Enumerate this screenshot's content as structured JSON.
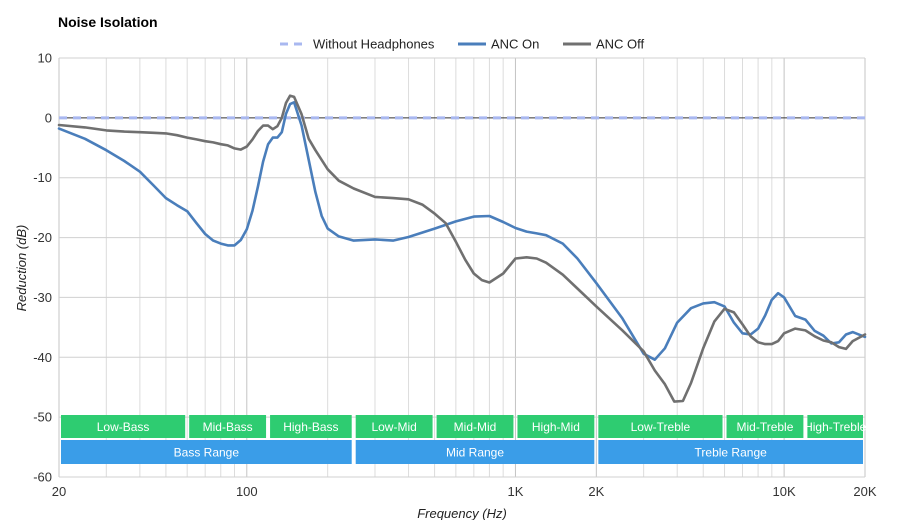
{
  "chart_data": {
    "type": "line",
    "title": "Noise Isolation",
    "xlabel": "Frequency (Hz)",
    "ylabel": "Reduction (dB)",
    "x_scale": "log",
    "xlim": [
      20,
      20000
    ],
    "ylim": [
      -60,
      10
    ],
    "x_ticks": [
      {
        "value": 20,
        "label": "20"
      },
      {
        "value": 100,
        "label": "100"
      },
      {
        "value": 1000,
        "label": "1K"
      },
      {
        "value": 2000,
        "label": "2K"
      },
      {
        "value": 10000,
        "label": "10K"
      },
      {
        "value": 20000,
        "label": "20K"
      }
    ],
    "y_ticks": [
      10,
      0,
      -10,
      -20,
      -30,
      -40,
      -50,
      -60
    ],
    "grid": true,
    "legend_position": "top",
    "series": [
      {
        "name": "Without Headphones",
        "color": "#a9b8f0",
        "dashed": true,
        "points": [
          [
            20,
            0
          ],
          [
            20000,
            0
          ]
        ]
      },
      {
        "name": "ANC On",
        "color": "#4a7ebb",
        "dashed": false,
        "points": [
          [
            20,
            -1.8
          ],
          [
            25,
            -3.5
          ],
          [
            30,
            -5.4
          ],
          [
            35,
            -7.2
          ],
          [
            40,
            -9
          ],
          [
            45,
            -11.3
          ],
          [
            50,
            -13.4
          ],
          [
            55,
            -14.6
          ],
          [
            60,
            -15.6
          ],
          [
            65,
            -17.6
          ],
          [
            70,
            -19.4
          ],
          [
            75,
            -20.5
          ],
          [
            80,
            -21
          ],
          [
            85,
            -21.3
          ],
          [
            90,
            -21.3
          ],
          [
            95,
            -20.4
          ],
          [
            100,
            -18.6
          ],
          [
            105,
            -15.5
          ],
          [
            110,
            -11.5
          ],
          [
            115,
            -7.3
          ],
          [
            120,
            -4.4
          ],
          [
            125,
            -3.3
          ],
          [
            130,
            -3.3
          ],
          [
            135,
            -2.4
          ],
          [
            140,
            0.7
          ],
          [
            145,
            2.3
          ],
          [
            150,
            2.6
          ],
          [
            160,
            -1.3
          ],
          [
            170,
            -7
          ],
          [
            180,
            -12.4
          ],
          [
            190,
            -16.4
          ],
          [
            200,
            -18.5
          ],
          [
            220,
            -19.8
          ],
          [
            250,
            -20.5
          ],
          [
            300,
            -20.3
          ],
          [
            350,
            -20.5
          ],
          [
            400,
            -19.9
          ],
          [
            500,
            -18.5
          ],
          [
            600,
            -17.3
          ],
          [
            700,
            -16.5
          ],
          [
            800,
            -16.4
          ],
          [
            900,
            -17.4
          ],
          [
            1000,
            -18.4
          ],
          [
            1100,
            -19
          ],
          [
            1200,
            -19.3
          ],
          [
            1300,
            -19.6
          ],
          [
            1500,
            -21
          ],
          [
            1700,
            -23.5
          ],
          [
            2000,
            -27.6
          ],
          [
            2500,
            -33.5
          ],
          [
            3000,
            -39.4
          ],
          [
            3300,
            -40.4
          ],
          [
            3600,
            -38.5
          ],
          [
            4000,
            -34.2
          ],
          [
            4500,
            -31.8
          ],
          [
            5000,
            -31
          ],
          [
            5500,
            -30.8
          ],
          [
            6000,
            -31.5
          ],
          [
            6500,
            -34.2
          ],
          [
            7000,
            -36
          ],
          [
            7500,
            -36.2
          ],
          [
            8000,
            -35.2
          ],
          [
            8500,
            -33
          ],
          [
            9000,
            -30.4
          ],
          [
            9500,
            -29.3
          ],
          [
            10000,
            -30
          ],
          [
            11000,
            -33.1
          ],
          [
            12000,
            -33.7
          ],
          [
            13000,
            -35.6
          ],
          [
            14000,
            -36.4
          ],
          [
            15000,
            -37.7
          ],
          [
            16000,
            -37.5
          ],
          [
            17000,
            -36.2
          ],
          [
            18000,
            -35.8
          ],
          [
            20000,
            -36.6
          ]
        ]
      },
      {
        "name": "ANC Off",
        "color": "#707070",
        "dashed": false,
        "points": [
          [
            20,
            -1.2
          ],
          [
            25,
            -1.6
          ],
          [
            30,
            -2.1
          ],
          [
            35,
            -2.3
          ],
          [
            40,
            -2.4
          ],
          [
            45,
            -2.5
          ],
          [
            50,
            -2.6
          ],
          [
            55,
            -2.9
          ],
          [
            60,
            -3.3
          ],
          [
            65,
            -3.6
          ],
          [
            70,
            -3.9
          ],
          [
            75,
            -4.1
          ],
          [
            80,
            -4.4
          ],
          [
            85,
            -4.6
          ],
          [
            90,
            -5.1
          ],
          [
            95,
            -5.3
          ],
          [
            100,
            -4.8
          ],
          [
            105,
            -3.6
          ],
          [
            110,
            -2.2
          ],
          [
            115,
            -1.3
          ],
          [
            120,
            -1.3
          ],
          [
            125,
            -1.9
          ],
          [
            130,
            -1.4
          ],
          [
            135,
            0
          ],
          [
            140,
            2.5
          ],
          [
            145,
            3.7
          ],
          [
            150,
            3.5
          ],
          [
            160,
            0.6
          ],
          [
            170,
            -3.5
          ],
          [
            180,
            -5.4
          ],
          [
            200,
            -8.6
          ],
          [
            220,
            -10.5
          ],
          [
            250,
            -11.8
          ],
          [
            300,
            -13.2
          ],
          [
            350,
            -13.4
          ],
          [
            400,
            -13.6
          ],
          [
            450,
            -14.5
          ],
          [
            500,
            -16
          ],
          [
            550,
            -17.6
          ],
          [
            600,
            -20.7
          ],
          [
            650,
            -23.7
          ],
          [
            700,
            -26
          ],
          [
            750,
            -27.1
          ],
          [
            800,
            -27.5
          ],
          [
            900,
            -26
          ],
          [
            1000,
            -23.5
          ],
          [
            1100,
            -23.3
          ],
          [
            1200,
            -23.5
          ],
          [
            1300,
            -24.2
          ],
          [
            1500,
            -26.2
          ],
          [
            1700,
            -28.5
          ],
          [
            2000,
            -31.5
          ],
          [
            2500,
            -35.5
          ],
          [
            3000,
            -39
          ],
          [
            3300,
            -42.2
          ],
          [
            3600,
            -44.5
          ],
          [
            3900,
            -47.4
          ],
          [
            4200,
            -47.3
          ],
          [
            4500,
            -44.3
          ],
          [
            5000,
            -38.5
          ],
          [
            5500,
            -34
          ],
          [
            6000,
            -31.9
          ],
          [
            6500,
            -32.5
          ],
          [
            7000,
            -34.5
          ],
          [
            7500,
            -36.5
          ],
          [
            8000,
            -37.5
          ],
          [
            8500,
            -37.8
          ],
          [
            9000,
            -37.8
          ],
          [
            9500,
            -37.3
          ],
          [
            10000,
            -36
          ],
          [
            11000,
            -35.2
          ],
          [
            12000,
            -35.5
          ],
          [
            13000,
            -36.5
          ],
          [
            14000,
            -37.2
          ],
          [
            15000,
            -37.5
          ],
          [
            16000,
            -38.3
          ],
          [
            17000,
            -38.6
          ],
          [
            18000,
            -37.3
          ],
          [
            20000,
            -36.2
          ]
        ]
      }
    ],
    "bands": [
      {
        "label": "Low-Bass",
        "row": 1,
        "from": 20,
        "to": 60,
        "color": "#2ecc71"
      },
      {
        "label": "Mid-Bass",
        "row": 1,
        "from": 60,
        "to": 120,
        "color": "#2ecc71"
      },
      {
        "label": "High-Bass",
        "row": 1,
        "from": 120,
        "to": 250,
        "color": "#2ecc71"
      },
      {
        "label": "Low-Mid",
        "row": 1,
        "from": 250,
        "to": 500,
        "color": "#2ecc71"
      },
      {
        "label": "Mid-Mid",
        "row": 1,
        "from": 500,
        "to": 1000,
        "color": "#2ecc71"
      },
      {
        "label": "High-Mid",
        "row": 1,
        "from": 1000,
        "to": 2000,
        "color": "#2ecc71"
      },
      {
        "label": "Low-Treble",
        "row": 1,
        "from": 2000,
        "to": 6000,
        "color": "#2ecc71"
      },
      {
        "label": "Mid-Treble",
        "row": 1,
        "from": 6000,
        "to": 12000,
        "color": "#2ecc71"
      },
      {
        "label": "High-Treble",
        "row": 1,
        "from": 12000,
        "to": 20000,
        "color": "#2ecc71"
      },
      {
        "label": "Bass Range",
        "row": 2,
        "from": 20,
        "to": 250,
        "color": "#3a9de8"
      },
      {
        "label": "Mid Range",
        "row": 2,
        "from": 250,
        "to": 2000,
        "color": "#3a9de8"
      },
      {
        "label": "Treble Range",
        "row": 2,
        "from": 2000,
        "to": 20000,
        "color": "#3a9de8"
      }
    ]
  }
}
